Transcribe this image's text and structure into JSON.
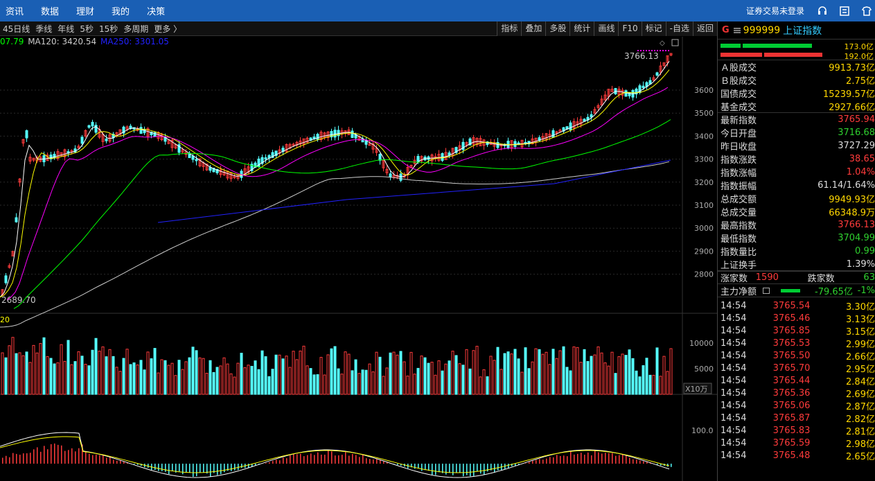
{
  "menu": {
    "items": [
      "资讯",
      "数据",
      "理财",
      "我的",
      "决策"
    ],
    "login": "证券交易未登录"
  },
  "periods": [
    "45日线",
    "季线",
    "年线",
    "5秒",
    "15秒",
    "多周期",
    "更多 〉"
  ],
  "tools": [
    "指标",
    "叠加",
    "多股",
    "统计",
    "画线",
    "F10",
    "标记",
    "-自选",
    "返回"
  ],
  "ma_legend": {
    "ma_cut": "07.79",
    "ma120": "MA120: 3420.54",
    "ma250": "MA250: 3301.05"
  },
  "colors": {
    "up": "#ff3b3b",
    "down": "#5ff",
    "ma5": "#ffffff",
    "ma10": "#ffff00",
    "ma20": "#ff00ff",
    "ma60": "#00ff00",
    "ma120": "#cccccc",
    "ma250": "#2222ff"
  },
  "price_axis": [
    "3600",
    "3500",
    "3400",
    "3300",
    "3200",
    "3100",
    "3000",
    "2900",
    "2800"
  ],
  "price_labels": {
    "high": "3766.13",
    "low": "2689.70"
  },
  "vol_axis": [
    "10000",
    "5000"
  ],
  "vol_unit": "X10万",
  "vol_label": "20",
  "macd_axis": "100.0",
  "stock": {
    "flag": "G",
    "code": "999999",
    "name": "上证指数",
    "bar1_value": "173.0亿",
    "bar2_value": "192.0亿"
  },
  "stats": [
    {
      "label": "Ａ股成交",
      "value": "9913.73亿",
      "cls": ""
    },
    {
      "label": "Ｂ股成交",
      "value": "2.75亿",
      "cls": ""
    },
    {
      "label": "国债成交",
      "value": "15239.57亿",
      "cls": ""
    },
    {
      "label": "基金成交",
      "value": "2927.66亿",
      "cls": ""
    },
    {
      "label": "最新指数",
      "value": "3765.94",
      "cls": "up"
    },
    {
      "label": "今日开盘",
      "value": "3716.68",
      "cls": "dn"
    },
    {
      "label": "昨日收盘",
      "value": "3727.29",
      "cls": "wh"
    },
    {
      "label": "指数涨跌",
      "value": "38.65",
      "cls": "up"
    },
    {
      "label": "指数涨幅",
      "value": "1.04%",
      "cls": "up"
    },
    {
      "label": "指数振幅",
      "value": "61.14/1.64%",
      "cls": "wh"
    },
    {
      "label": "总成交额",
      "value": "9949.93亿",
      "cls": ""
    },
    {
      "label": "总成交量",
      "value": "66348.9万",
      "cls": ""
    },
    {
      "label": "最高指数",
      "value": "3766.13",
      "cls": "up"
    },
    {
      "label": "最低指数",
      "value": "3704.99",
      "cls": "dn"
    },
    {
      "label": "指数量比",
      "value": "0.99",
      "cls": "dn"
    },
    {
      "label": "上证换手",
      "value": "1.39%",
      "cls": "wh"
    }
  ],
  "breadth": {
    "up_label": "涨家数",
    "up_value": "1590",
    "down_label": "跌家数",
    "down_value": "63"
  },
  "net_flow": {
    "label": "主力净额",
    "value": "-79.65亿",
    "pct": "-1%"
  },
  "ticks": [
    {
      "time": "14:54",
      "price": "3765.54",
      "vol": "3.30亿"
    },
    {
      "time": "14:54",
      "price": "3765.46",
      "vol": "3.13亿"
    },
    {
      "time": "14:54",
      "price": "3765.85",
      "vol": "3.15亿"
    },
    {
      "time": "14:54",
      "price": "3765.53",
      "vol": "2.99亿"
    },
    {
      "time": "14:54",
      "price": "3765.50",
      "vol": "2.66亿"
    },
    {
      "time": "14:54",
      "price": "3765.70",
      "vol": "2.95亿"
    },
    {
      "time": "14:54",
      "price": "3765.44",
      "vol": "2.84亿"
    },
    {
      "time": "14:54",
      "price": "3765.36",
      "vol": "2.69亿"
    },
    {
      "time": "14:54",
      "price": "3765.06",
      "vol": "2.87亿"
    },
    {
      "time": "14:54",
      "price": "3765.87",
      "vol": "2.82亿"
    },
    {
      "time": "14:54",
      "price": "3765.83",
      "vol": "2.81亿"
    },
    {
      "time": "14:54",
      "price": "3765.59",
      "vol": "2.98亿"
    },
    {
      "time": "14:54",
      "price": "3765.48",
      "vol": "2.65亿"
    }
  ]
}
